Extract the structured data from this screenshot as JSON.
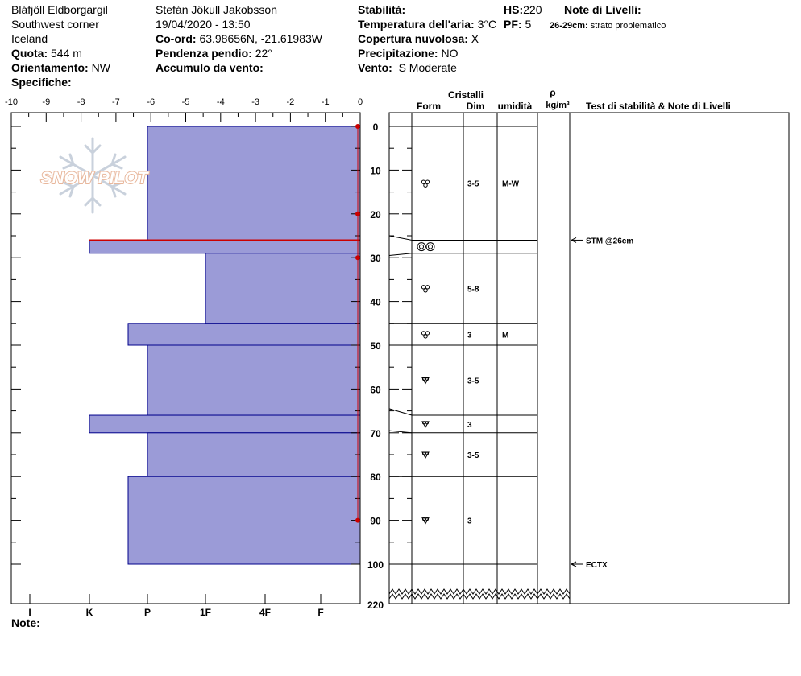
{
  "header": {
    "location_name": "Bláfjöll Eldborgargil",
    "region": "Southwest corner",
    "country": "Iceland",
    "elevation_label": "Quota:",
    "elevation": "544 m",
    "aspect_label": "Orientamento:",
    "aspect": "NW",
    "specifics_label": "Specifiche:",
    "observer": "Stefán Jökull Jakobsson",
    "datetime": "19/04/2020 - 13:50",
    "coords_label": "Co-ord:",
    "coords": "63.98656N, -21.61983W",
    "slope_label": "Pendenza pendio:",
    "slope": "22°",
    "wind_loading_label": "Accumulo da vento:",
    "stability_label": "Stabilità:",
    "air_temp_label": "Temperatura dell'aria:",
    "air_temp": "3°C",
    "cloud_label": "Copertura nuvolosa:",
    "cloud": "X",
    "precip_label": "Precipitazione:",
    "precip": "NO",
    "wind_label": "Vento:",
    "wind": "S Moderate",
    "hs_label": "HS:",
    "hs": "220",
    "pf_label": "PF:",
    "pf": "5",
    "layer_notes_label": "Note di Livelli:",
    "layer_note_range": "26-29cm:",
    "layer_note_text": "strato problematico"
  },
  "logo_text": "SNOW PILOT",
  "footer": {
    "notes_label": "Note:"
  },
  "columns": {
    "crystals": "Cristalli",
    "form": "Form",
    "size": "Dim",
    "moisture": "umidità",
    "density_symbol": "ρ",
    "density_unit": "kg/m³",
    "tests": "Test di stabilità & Note di Livelli"
  },
  "colors": {
    "layer_fill": "#9b9bd7",
    "layer_stroke": "#00008b",
    "temp_line": "#cc0000"
  },
  "chart_data": {
    "type": "snow-profile",
    "temperature_axis": {
      "ticks": [
        -10,
        -9,
        -8,
        -7,
        -6,
        -5,
        -4,
        -3,
        -2,
        -1,
        0
      ]
    },
    "hardness_axis": {
      "ticks": [
        "I",
        "K",
        "P",
        "1F",
        "4F",
        "F"
      ]
    },
    "depth_axis": {
      "ticks": [
        0,
        10,
        20,
        30,
        40,
        50,
        60,
        70,
        80,
        90,
        100
      ],
      "bottom_label": "220"
    },
    "layers": [
      {
        "top": 0,
        "bottom": 26,
        "hardness": "P",
        "form": "rounded",
        "size": "3-5",
        "moisture": "M-W"
      },
      {
        "top": 26,
        "bottom": 29,
        "hardness": "K",
        "form": "ice",
        "size": "",
        "moisture": ""
      },
      {
        "top": 29,
        "bottom": 45,
        "hardness": "1F",
        "form": "rounded",
        "size": "5-8",
        "moisture": ""
      },
      {
        "top": 45,
        "bottom": 50,
        "hardness": "K-P",
        "form": "rounded",
        "size": "3",
        "moisture": "M"
      },
      {
        "top": 50,
        "bottom": 66,
        "hardness": "P",
        "form": "faceted",
        "size": "3-5",
        "moisture": ""
      },
      {
        "top": 66,
        "bottom": 70,
        "hardness": "K",
        "form": "faceted",
        "size": "3",
        "moisture": ""
      },
      {
        "top": 70,
        "bottom": 80,
        "hardness": "P",
        "form": "faceted",
        "size": "3-5",
        "moisture": ""
      },
      {
        "top": 80,
        "bottom": 100,
        "hardness": "K-P",
        "form": "faceted",
        "size": "3",
        "moisture": ""
      }
    ],
    "temperature_profile": [
      {
        "depth": 0,
        "temp": 0
      },
      {
        "depth": 20,
        "temp": 0
      },
      {
        "depth": 30,
        "temp": 0
      },
      {
        "depth": 90,
        "temp": 0
      }
    ],
    "problem_layer_depth": 26,
    "tests": [
      {
        "depth": 26,
        "label": "STM @26cm"
      },
      {
        "depth": 100,
        "label": "ECTX"
      }
    ]
  }
}
